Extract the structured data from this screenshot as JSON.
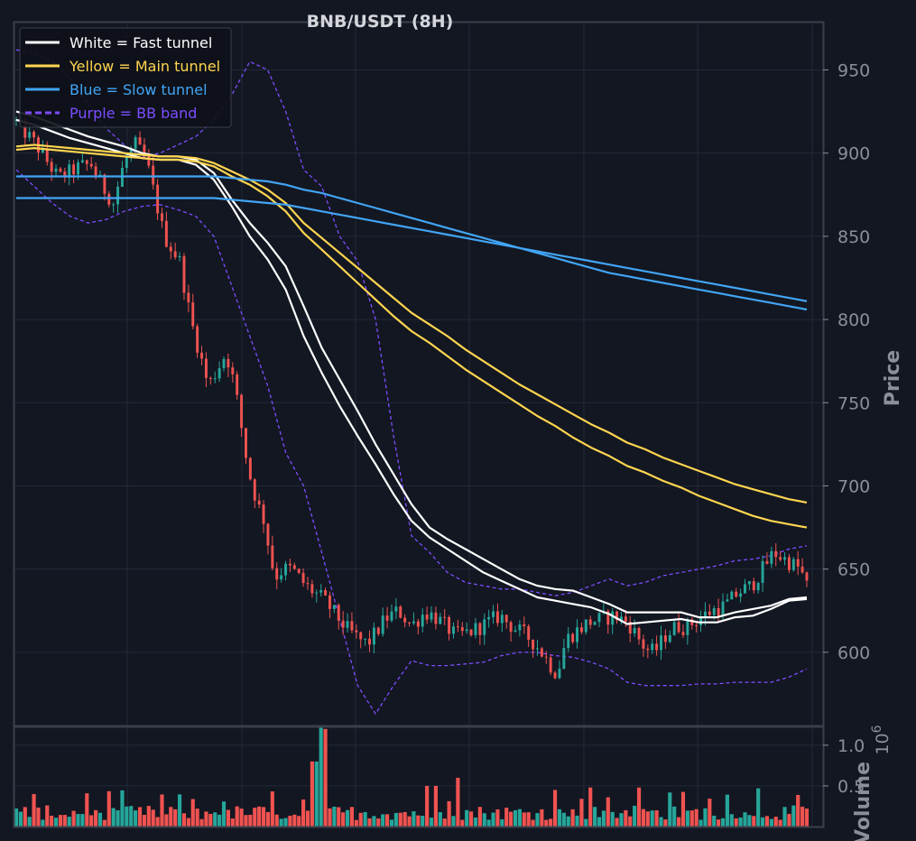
{
  "chart_data": [
    {
      "type": "candlestick",
      "title": "BNB/USDT (8H)",
      "ylabel": "Price",
      "ylim": [
        556,
        979
      ],
      "yticks": [
        600,
        650,
        700,
        750,
        800,
        850,
        900,
        950
      ],
      "grid": true,
      "legend_position": "top-left",
      "colors": {
        "background": "#131722",
        "grid": "#232838",
        "frame": "#3b3f4b",
        "up": "#26a69a",
        "down": "#ef5350",
        "fast": "#ffffff",
        "main": "#ffd54f",
        "slow": "#42a5f5",
        "bb": "#7c4dff"
      },
      "series": [
        {
          "name": "White = Fast tunnel",
          "color": "#ffffff",
          "style": "solid",
          "lines": [
            [
              920,
              917,
              913,
              909,
              906,
              903,
              900,
              897,
              896,
              896,
              893,
              884,
              868,
              850,
              836,
              818,
              790,
              768,
              748,
              730,
              713,
              695,
              679,
              669,
              662,
              655,
              648,
              643,
              638,
              633,
              631,
              629,
              627,
              623,
              617,
              618,
              619,
              620,
              618,
              618,
              621,
              622,
              626,
              631,
              632
            ],
            [
              925,
              922,
              918,
              914,
              910,
              907,
              904,
              900,
              898,
              898,
              896,
              888,
              872,
              858,
              846,
              832,
              808,
              783,
              764,
              745,
              725,
              707,
              689,
              675,
              668,
              662,
              656,
              650,
              644,
              640,
              638,
              637,
              633,
              629,
              624,
              624,
              624,
              624,
              621,
              621,
              624,
              626,
              628,
              632,
              633
            ]
          ]
        },
        {
          "name": "Yellow = Main tunnel",
          "color": "#ffd54f",
          "style": "solid",
          "lines": [
            [
              902,
              903,
              902,
              901,
              900,
              899,
              898,
              897,
              896,
              896,
              895,
              892,
              886,
              881,
              874,
              865,
              852,
              842,
              832,
              822,
              812,
              802,
              793,
              786,
              778,
              770,
              763,
              756,
              749,
              742,
              736,
              729,
              723,
              718,
              712,
              708,
              703,
              699,
              694,
              690,
              686,
              682,
              679,
              677,
              675
            ],
            [
              904,
              905,
              904,
              903,
              902,
              901,
              900,
              899,
              898,
              898,
              897,
              894,
              889,
              884,
              878,
              870,
              858,
              849,
              840,
              831,
              822,
              813,
              804,
              797,
              790,
              782,
              775,
              768,
              761,
              755,
              749,
              743,
              737,
              732,
              726,
              722,
              717,
              713,
              709,
              705,
              701,
              698,
              695,
              692,
              690
            ]
          ]
        },
        {
          "name": "Blue = Slow tunnel",
          "color": "#42a5f5",
          "style": "solid",
          "lines": [
            [
              873,
              873,
              873,
              873,
              873,
              873,
              873,
              873,
              873,
              873,
              873,
              873,
              872,
              871,
              870,
              869,
              867,
              865,
              863,
              861,
              859,
              857,
              855,
              853,
              851,
              849,
              847,
              845,
              843,
              841,
              839,
              837,
              835,
              833,
              831,
              829,
              827,
              825,
              823,
              821,
              819,
              817,
              815,
              813,
              811
            ],
            [
              886,
              886,
              886,
              886,
              886,
              886,
              886,
              886,
              886,
              886,
              886,
              886,
              885,
              884,
              883,
              881,
              878,
              876,
              873,
              870,
              867,
              864,
              861,
              858,
              855,
              852,
              849,
              846,
              843,
              840,
              837,
              834,
              831,
              828,
              826,
              824,
              822,
              820,
              818,
              816,
              814,
              812,
              810,
              808,
              806
            ]
          ]
        },
        {
          "name": "Purple = BB band",
          "color": "#7c4dff",
          "style": "dashed",
          "lines": [
            [
              962,
              960,
              955,
              945,
              930,
              915,
              905,
              898,
              900,
              905,
              910,
              920,
              935,
              955,
              950,
              925,
              890,
              880,
              850,
              835,
              800,
              730,
              670,
              660,
              648,
              642,
              640,
              638,
              638,
              636,
              634,
              636,
              640,
              644,
              640,
              642,
              646,
              648,
              650,
              652,
              655,
              656,
              658,
              662,
              664
            ],
            [
              890,
              880,
              870,
              862,
              858,
              860,
              865,
              868,
              869,
              866,
              862,
              850,
              820,
              790,
              760,
              720,
              700,
              660,
              620,
              580,
              563,
              580,
              595,
              592,
              592,
              593,
              594,
              598,
              600,
              600,
              598,
              597,
              594,
              590,
              582,
              580,
              580,
              580,
              581,
              581,
              582,
              582,
              582,
              585,
              590
            ]
          ]
        }
      ],
      "candles": {
        "count": 180,
        "price_path": [
          [
            0,
            920
          ],
          [
            10,
            905
          ],
          [
            20,
            885
          ],
          [
            30,
            892
          ],
          [
            35,
            893
          ],
          [
            40,
            880
          ],
          [
            45,
            870
          ],
          [
            50,
            895
          ],
          [
            55,
            905
          ],
          [
            60,
            895
          ],
          [
            68,
            850
          ],
          [
            75,
            835
          ],
          [
            80,
            800
          ],
          [
            88,
            760
          ],
          [
            92,
            770
          ],
          [
            96,
            780
          ],
          [
            100,
            760
          ],
          [
            106,
            710
          ],
          [
            110,
            690
          ],
          [
            113,
            680
          ],
          [
            118,
            645
          ],
          [
            122,
            650
          ],
          [
            126,
            650
          ],
          [
            132,
            640
          ],
          [
            140,
            632
          ],
          [
            146,
            622
          ],
          [
            150,
            615
          ],
          [
            156,
            608
          ],
          [
            160,
            605
          ],
          [
            164,
            612
          ],
          [
            168,
            620
          ],
          [
            174,
            625
          ],
          [
            180,
            616
          ],
          [
            186,
            624
          ],
          [
            190,
            622
          ],
          [
            196,
            615
          ],
          [
            200,
            610
          ],
          [
            206,
            612
          ],
          [
            212,
            616
          ],
          [
            220,
            622
          ],
          [
            226,
            615
          ],
          [
            232,
            610
          ],
          [
            236,
            605
          ],
          [
            240,
            598
          ],
          [
            244,
            590
          ],
          [
            246,
            587
          ],
          [
            250,
            608
          ],
          [
            254,
            612
          ],
          [
            260,
            618
          ],
          [
            266,
            620
          ],
          [
            272,
            622
          ],
          [
            278,
            618
          ],
          [
            282,
            610
          ],
          [
            286,
            602
          ],
          [
            290,
            600
          ],
          [
            295,
            610
          ],
          [
            300,
            616
          ],
          [
            304,
            615
          ],
          [
            310,
            620
          ],
          [
            316,
            625
          ],
          [
            322,
            628
          ],
          [
            328,
            636
          ],
          [
            334,
            640
          ],
          [
            340,
            652
          ],
          [
            344,
            660
          ],
          [
            350,
            655
          ],
          [
            356,
            650
          ],
          [
            359,
            640
          ]
        ]
      }
    },
    {
      "type": "bar",
      "ylabel": "Volume",
      "scale_label": "1e6",
      "yticks": [
        0.5,
        1.0
      ],
      "ylim": [
        0,
        1.22
      ],
      "grid": true,
      "spikes": [
        [
          134,
          0.8
        ],
        [
          136,
          0.8
        ],
        [
          138,
          1.3
        ],
        [
          140,
          1.2
        ],
        [
          185,
          0.5
        ],
        [
          190,
          0.5
        ],
        [
          200,
          0.6
        ],
        [
          243,
          0.45
        ],
        [
          259,
          0.48
        ],
        [
          282,
          0.48
        ],
        [
          336,
          0.47
        ]
      ]
    }
  ]
}
